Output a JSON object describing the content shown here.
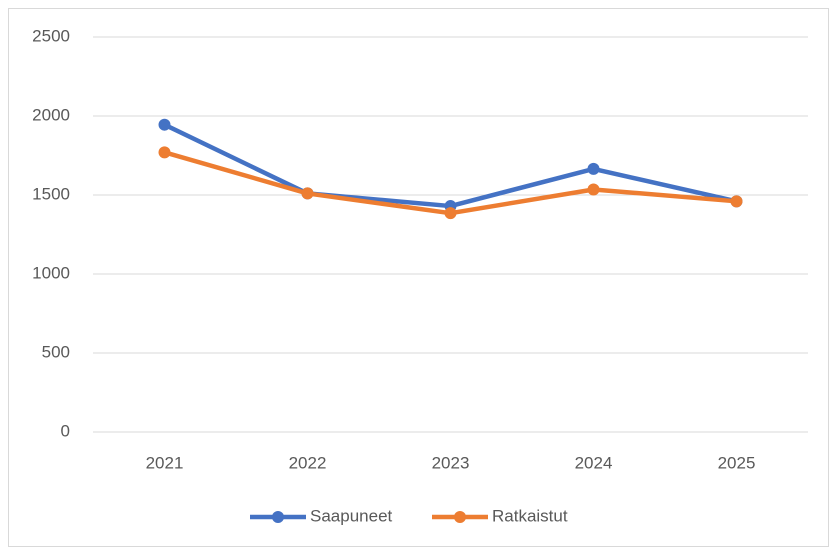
{
  "chart_data": {
    "type": "line",
    "categories": [
      "2021",
      "2022",
      "2023",
      "2024",
      "2025"
    ],
    "series": [
      {
        "name": "Saapuneet",
        "color": "#4472c4",
        "values": [
          1945,
          1510,
          1430,
          1665,
          1460
        ]
      },
      {
        "name": "Ratkaistut",
        "color": "#ed7d31",
        "values": [
          1770,
          1510,
          1385,
          1535,
          1460
        ]
      }
    ],
    "ylim": [
      0,
      2500
    ],
    "yticks": [
      0,
      500,
      1000,
      1500,
      2000,
      2500
    ],
    "grid": true,
    "legend": "bottom"
  }
}
